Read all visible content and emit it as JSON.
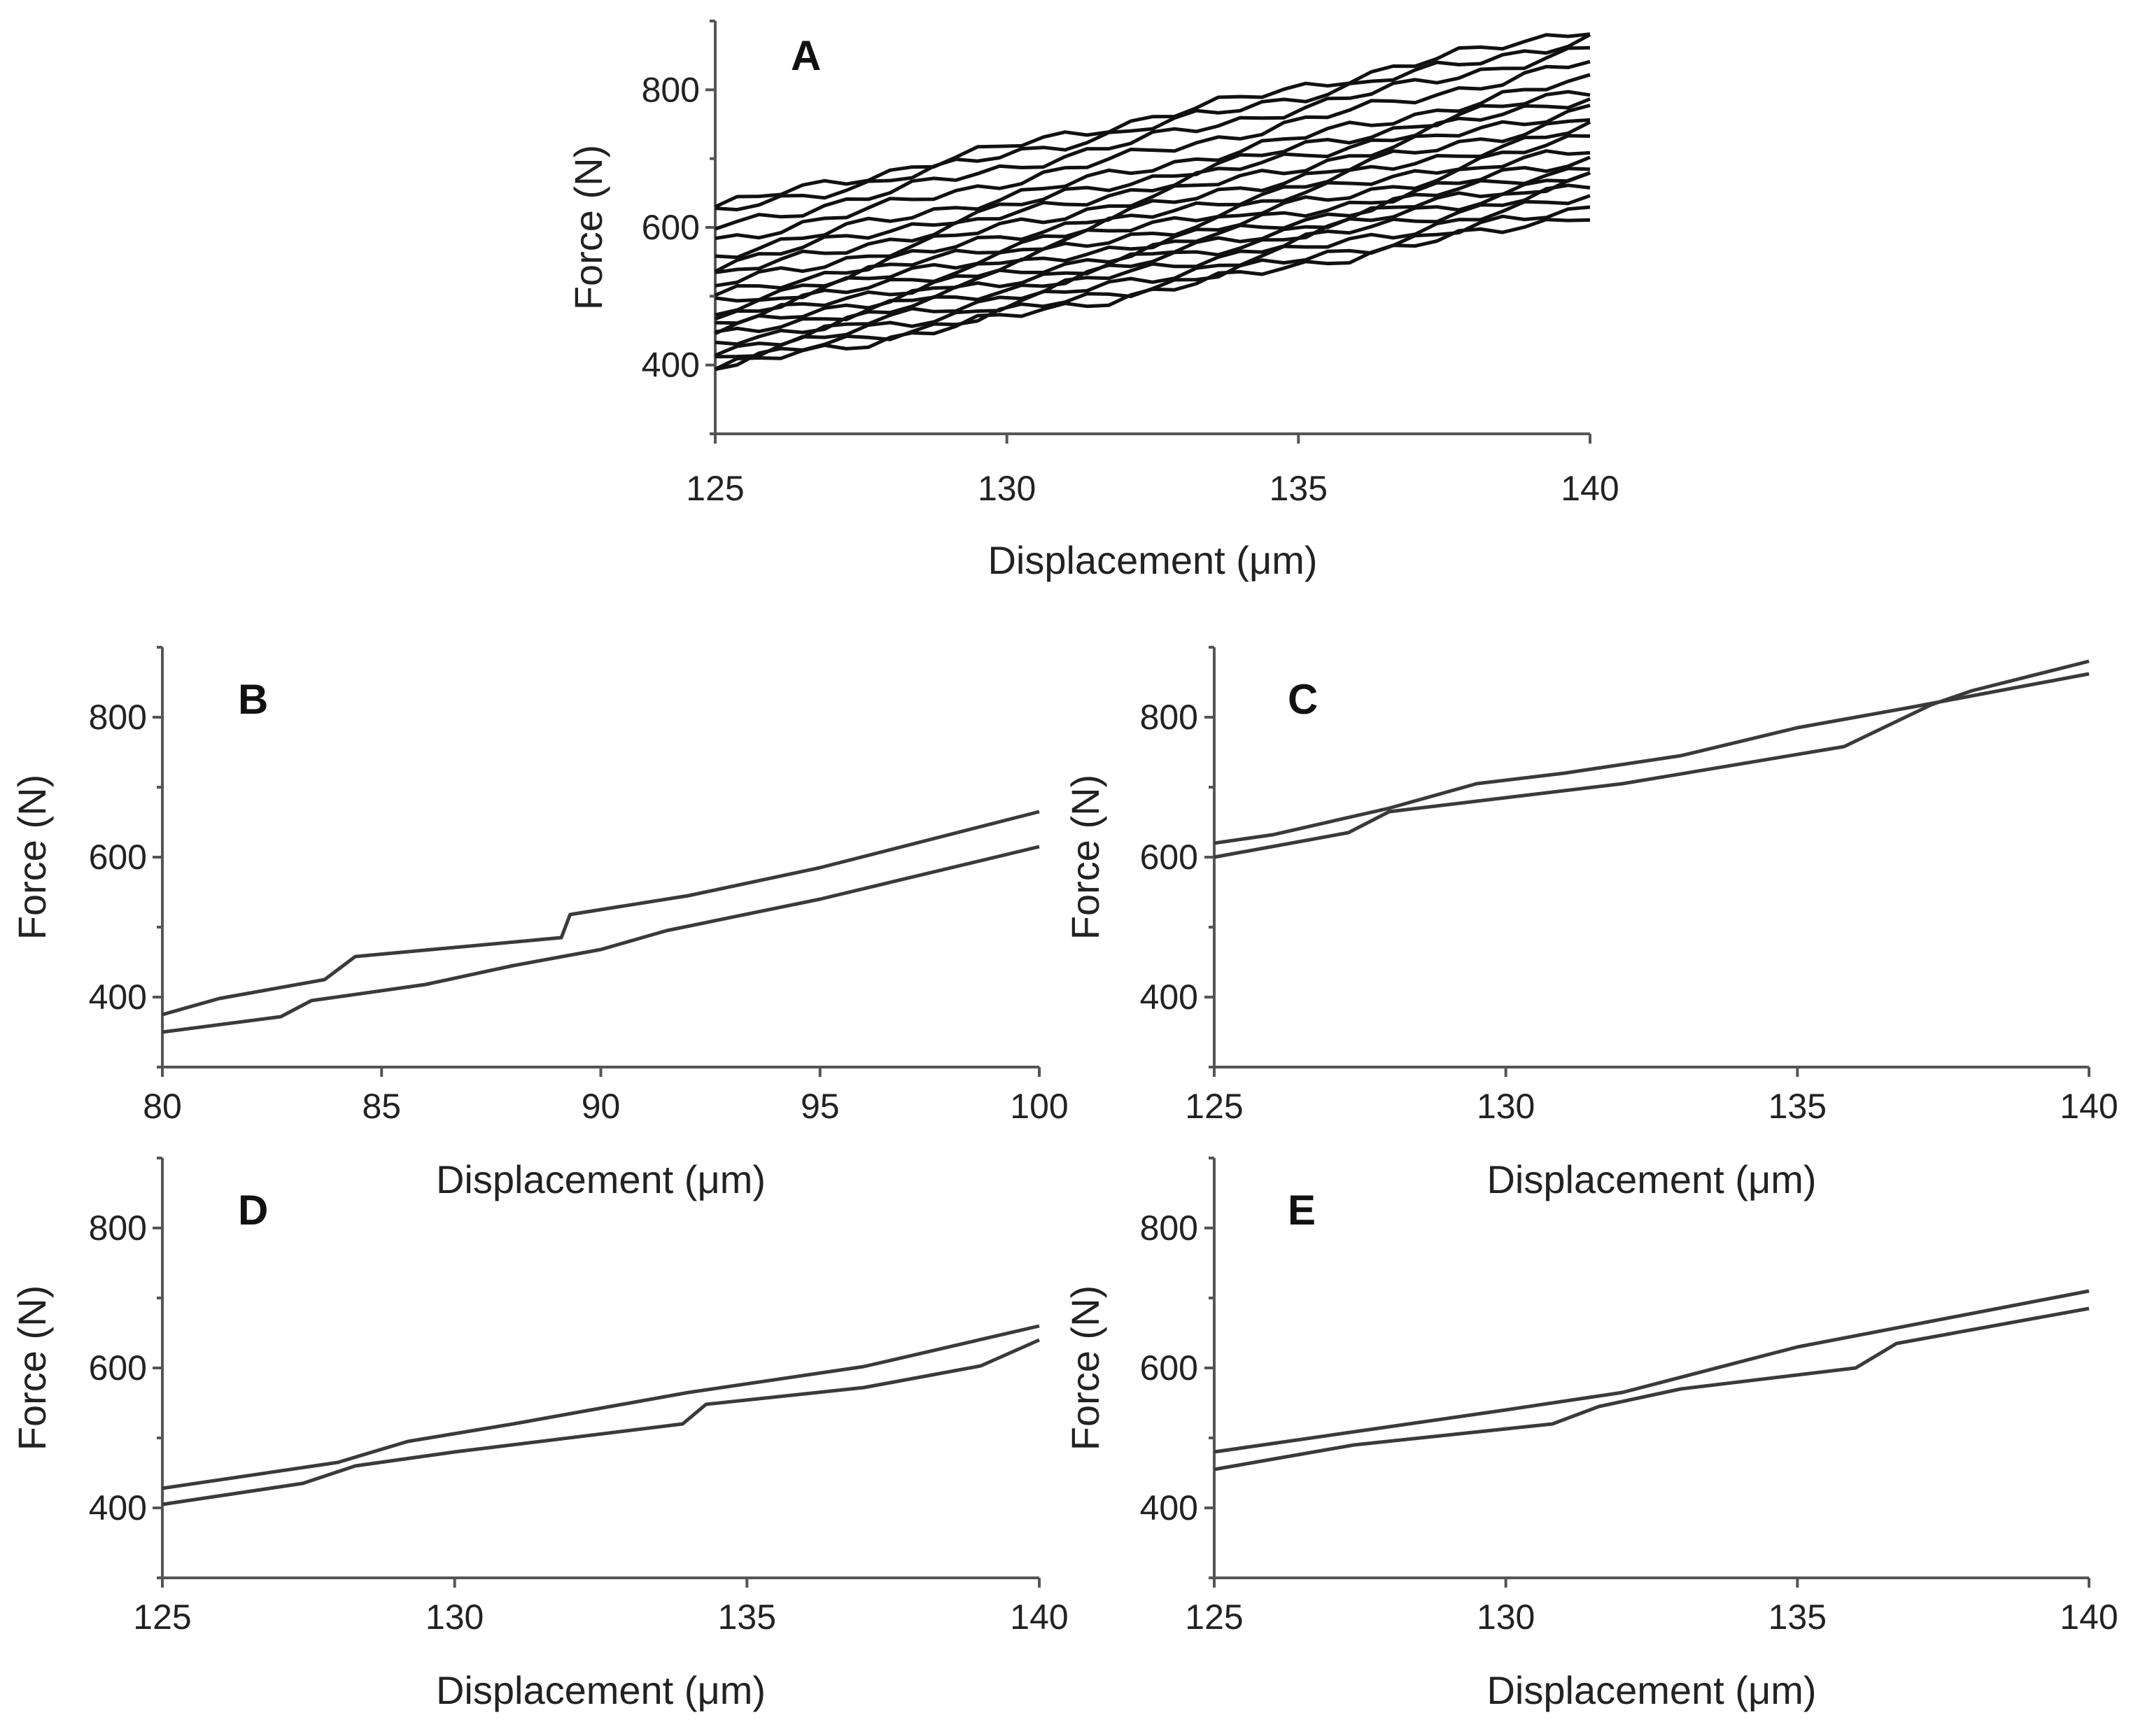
{
  "chart_data": [
    {
      "type": "line",
      "panel": "A",
      "xlabel": "Displacement (μm)",
      "ylabel": "Force (N)",
      "xlim": [
        125,
        140
      ],
      "ylim": [
        300,
        900
      ],
      "xticks": [
        125,
        130,
        135,
        140
      ],
      "yticks": [
        400,
        600,
        800
      ],
      "grid": false,
      "series": [
        {
          "name": "s1",
          "x": [
            125,
            140
          ],
          "y": [
            630,
            890
          ]
        },
        {
          "name": "s2",
          "x": [
            125,
            140
          ],
          "y": [
            620,
            875
          ]
        },
        {
          "name": "s3",
          "x": [
            125,
            140
          ],
          "y": [
            600,
            860
          ]
        },
        {
          "name": "s4",
          "x": [
            125,
            140
          ],
          "y": [
            580,
            840
          ]
        },
        {
          "name": "s5",
          "x": [
            125,
            140
          ],
          "y": [
            560,
            815
          ]
        },
        {
          "name": "s6",
          "x": [
            125,
            140
          ],
          "y": [
            545,
            800
          ]
        },
        {
          "name": "s7",
          "x": [
            125,
            140
          ],
          "y": [
            530,
            790
          ]
        },
        {
          "name": "s8",
          "x": [
            125,
            140
          ],
          "y": [
            515,
            775
          ]
        },
        {
          "name": "s9",
          "x": [
            125,
            140
          ],
          "y": [
            500,
            760
          ]
        },
        {
          "name": "s10",
          "x": [
            125,
            140
          ],
          "y": [
            490,
            745
          ]
        },
        {
          "name": "s11",
          "x": [
            125,
            140
          ],
          "y": [
            480,
            730
          ]
        },
        {
          "name": "s12",
          "x": [
            125,
            140
          ],
          "y": [
            470,
            715
          ]
        },
        {
          "name": "s13",
          "x": [
            125,
            140
          ],
          "y": [
            460,
            700
          ]
        },
        {
          "name": "s14",
          "x": [
            125,
            140
          ],
          "y": [
            450,
            690
          ]
        },
        {
          "name": "s15",
          "x": [
            125,
            140
          ],
          "y": [
            440,
            680
          ]
        },
        {
          "name": "s16",
          "x": [
            125,
            140
          ],
          "y": [
            430,
            670
          ]
        },
        {
          "name": "s17",
          "x": [
            125,
            140
          ],
          "y": [
            420,
            660
          ]
        },
        {
          "name": "s18",
          "x": [
            125,
            140
          ],
          "y": [
            410,
            645
          ]
        },
        {
          "name": "s19",
          "x": [
            125,
            140
          ],
          "y": [
            400,
            630
          ]
        },
        {
          "name": "s20",
          "x": [
            125,
            140
          ],
          "y": [
            395,
            620
          ]
        }
      ]
    },
    {
      "type": "line",
      "panel": "B",
      "xlabel": "Displacement (μm)",
      "ylabel": "Force (N)",
      "xlim": [
        80,
        100
      ],
      "ylim": [
        300,
        900
      ],
      "xticks": [
        80,
        85,
        90,
        95,
        100
      ],
      "yticks": [
        400,
        600,
        800
      ],
      "grid": false,
      "series": [
        {
          "name": "upper",
          "x": [
            80,
            81.3,
            83.7,
            84.4,
            89.1,
            89.3,
            92,
            95,
            100
          ],
          "y": [
            375,
            398,
            425,
            458,
            485,
            518,
            545,
            585,
            665
          ]
        },
        {
          "name": "lower",
          "x": [
            80,
            82.7,
            83.4,
            86,
            88,
            90,
            91.5,
            95,
            100
          ],
          "y": [
            350,
            372,
            395,
            418,
            445,
            468,
            495,
            540,
            615
          ]
        }
      ]
    },
    {
      "type": "line",
      "panel": "C",
      "xlabel": "Displacement (μm)",
      "ylabel": "Force (N)",
      "xlim": [
        125,
        140
      ],
      "ylim": [
        300,
        900
      ],
      "xticks": [
        125,
        130,
        135,
        140
      ],
      "yticks": [
        400,
        600,
        800
      ],
      "grid": false,
      "series": [
        {
          "name": "s1",
          "x": [
            125,
            126,
            128,
            129.5,
            131,
            133,
            135,
            137,
            140
          ],
          "y": [
            620,
            632,
            670,
            705,
            720,
            745,
            785,
            815,
            862
          ]
        },
        {
          "name": "s2",
          "x": [
            125,
            127.3,
            128,
            130,
            132,
            135.8,
            137.3,
            138,
            140
          ],
          "y": [
            600,
            635,
            665,
            685,
            705,
            758,
            818,
            838,
            880
          ]
        }
      ]
    },
    {
      "type": "line",
      "panel": "D",
      "xlabel": "Displacement (μm)",
      "ylabel": "Force (N)",
      "xlim": [
        125,
        140
      ],
      "ylim": [
        300,
        900
      ],
      "xticks": [
        125,
        130,
        135,
        140
      ],
      "yticks": [
        400,
        600,
        800
      ],
      "grid": false,
      "series": [
        {
          "name": "s1",
          "x": [
            125,
            128,
            129.2,
            131,
            134,
            137,
            140
          ],
          "y": [
            428,
            465,
            495,
            520,
            565,
            602,
            660
          ]
        },
        {
          "name": "s2",
          "x": [
            125,
            127.4,
            128.3,
            130,
            133.9,
            134.3,
            137,
            139,
            140
          ],
          "y": [
            405,
            435,
            460,
            480,
            520,
            548,
            572,
            603,
            640
          ]
        }
      ]
    },
    {
      "type": "line",
      "panel": "E",
      "xlabel": "Displacement (μm)",
      "ylabel": "Force (N)",
      "xlim": [
        125,
        140
      ],
      "ylim": [
        300,
        900
      ],
      "xticks": [
        125,
        130,
        135,
        140
      ],
      "yticks": [
        400,
        600,
        800
      ],
      "grid": false,
      "series": [
        {
          "name": "s1",
          "x": [
            125,
            127.5,
            130,
            132,
            135,
            140
          ],
          "y": [
            480,
            510,
            540,
            565,
            630,
            710
          ]
        },
        {
          "name": "s2",
          "x": [
            125,
            127.4,
            130.8,
            131.6,
            133,
            136,
            136.7,
            140
          ],
          "y": [
            455,
            490,
            520,
            545,
            570,
            600,
            635,
            685
          ]
        }
      ]
    }
  ]
}
